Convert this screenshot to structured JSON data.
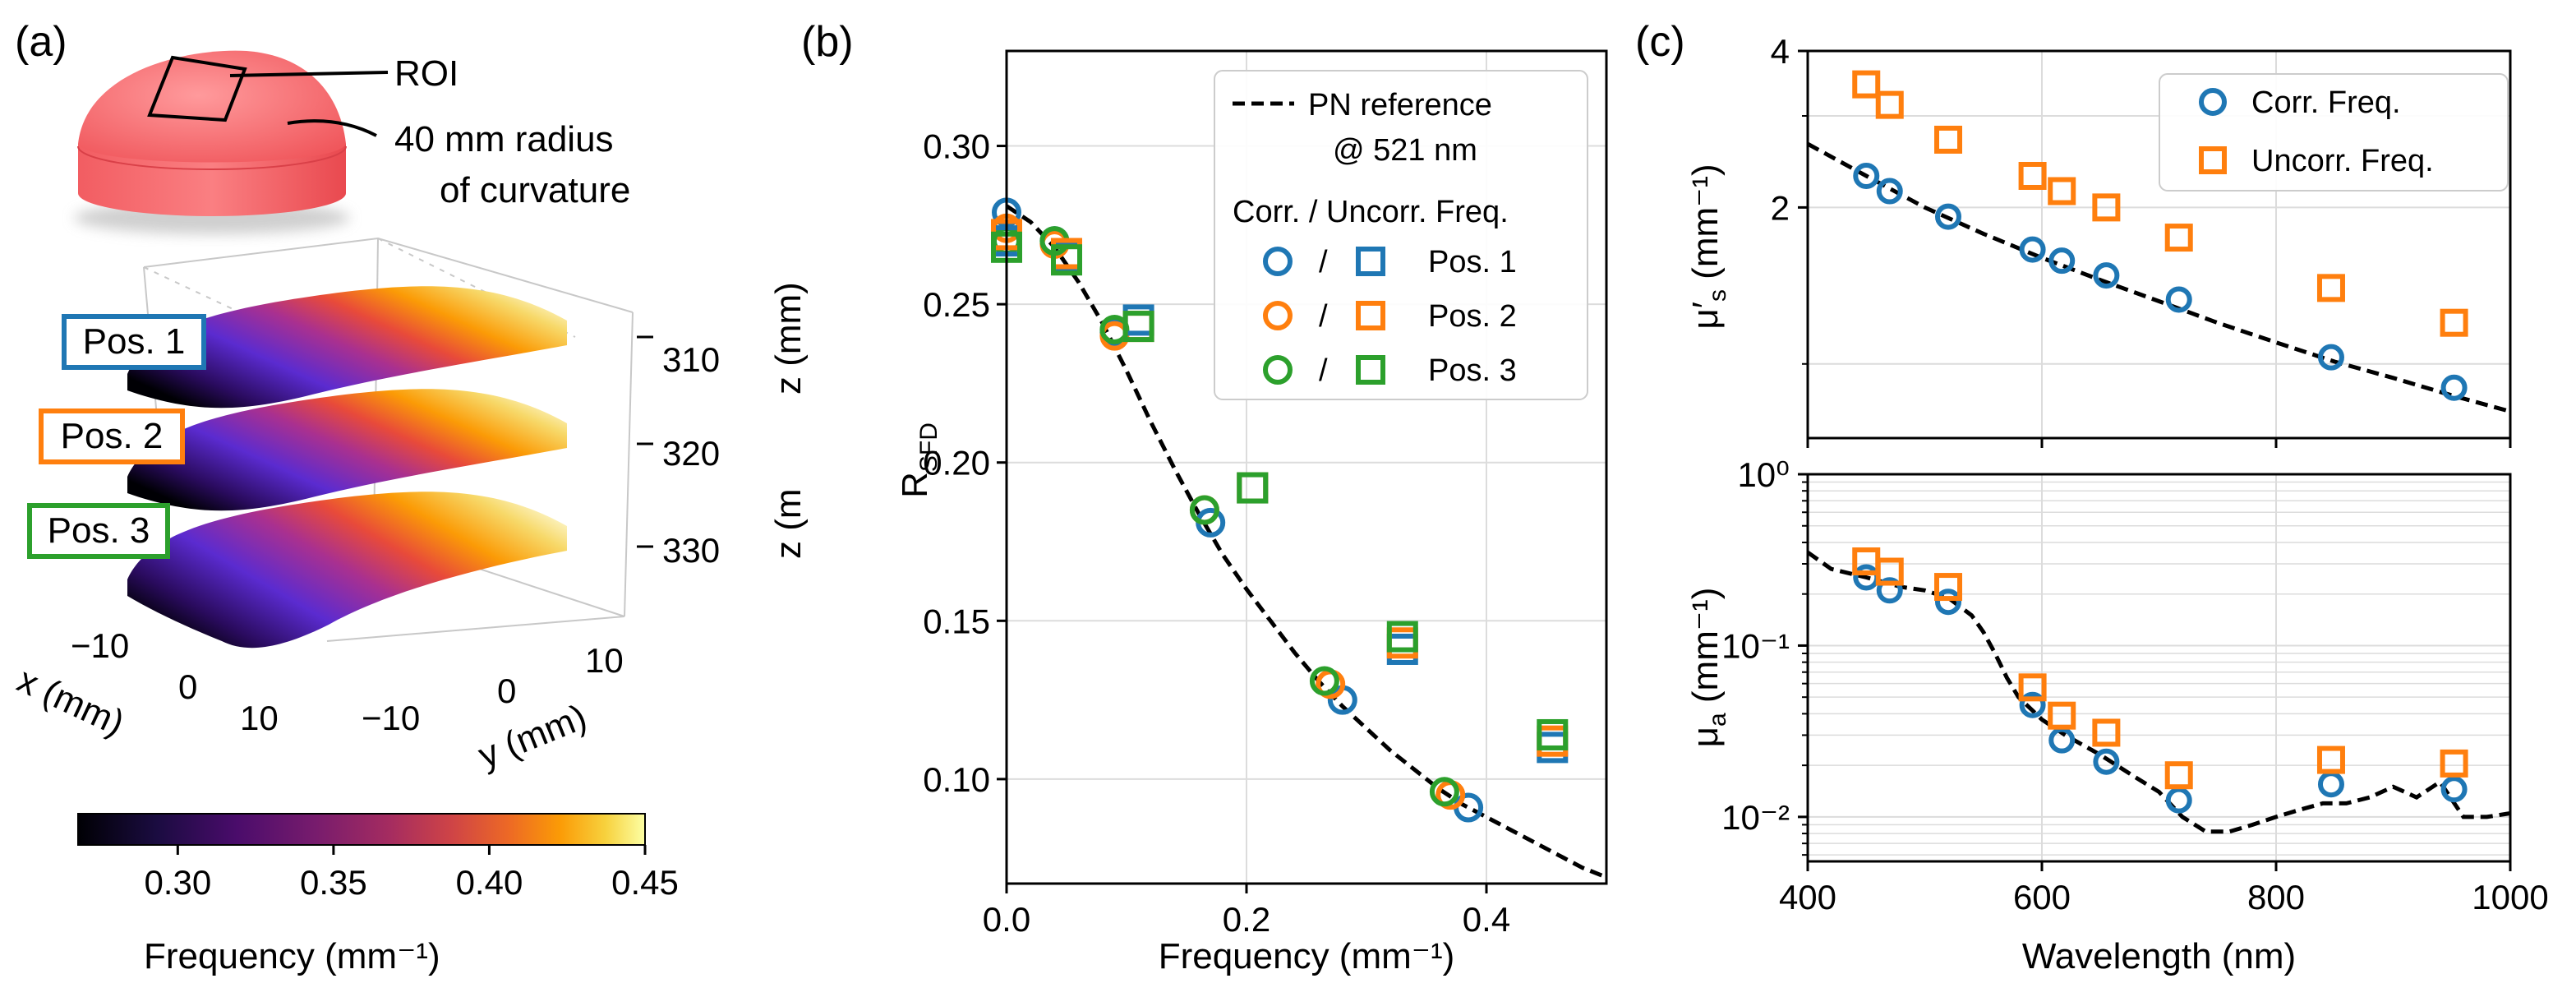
{
  "colors": {
    "pos1": "#1f77b4",
    "pos2": "#ff7f0e",
    "pos3": "#2ca02c",
    "corr": "#1f77b4",
    "uncorr": "#ff7f0e",
    "reference": "#000000",
    "phantom": "#f0575c",
    "grid": "#dcdcdc"
  },
  "panel_a": {
    "label": "(a)",
    "roi_label": "ROI",
    "curvature_label_line1": "40 mm radius",
    "curvature_label_line2": "of curvature",
    "positions": [
      "Pos. 1",
      "Pos. 2",
      "Pos. 3"
    ],
    "z_axis_label": "z (mm)",
    "z_axis_label_clipped": "z (m",
    "z_ticks": [
      "310",
      "320",
      "330"
    ],
    "x_axis_label": "x (mm)",
    "x_ticks": [
      "−10",
      "0",
      "10"
    ],
    "y_axis_label": "y (mm)",
    "y_ticks": [
      "−10",
      "0",
      "10"
    ],
    "colorbar": {
      "label": "Frequency (mm⁻¹)",
      "ticks": [
        "0.30",
        "0.35",
        "0.40",
        "0.45"
      ],
      "tick_values": [
        0.3,
        0.35,
        0.4,
        0.45
      ],
      "range": [
        0.268,
        0.45
      ],
      "colormap": "inferno"
    }
  },
  "panel_b": {
    "label": "(b)",
    "legend": {
      "reference_line1": "PN reference",
      "reference_line2": "@ 521 nm",
      "header": "Corr. / Uncorr. Freq.",
      "separator": "/",
      "entries": [
        "Pos. 1",
        "Pos. 2",
        "Pos. 3"
      ]
    }
  },
  "panel_c": {
    "label": "(c)",
    "legend": {
      "corr": "Corr. Freq.",
      "uncorr": "Uncorr. Freq."
    }
  },
  "chart_data": [
    {
      "id": "b",
      "type": "scatter",
      "xlabel": "Frequency (mm⁻¹)",
      "ylabel": "R_SFD",
      "xlim": [
        0.0,
        0.5
      ],
      "ylim": [
        0.067,
        0.33
      ],
      "xticks": [
        0.0,
        0.2,
        0.4
      ],
      "xtick_labels": [
        "0.0",
        "0.2",
        "0.4"
      ],
      "yticks": [
        0.1,
        0.15,
        0.2,
        0.25,
        0.3
      ],
      "ytick_labels": [
        "0.10",
        "0.15",
        "0.20",
        "0.25",
        "0.30"
      ],
      "grid": true,
      "reference": {
        "name": "PN reference @ 521 nm",
        "x": [
          0.0,
          0.02,
          0.04,
          0.06,
          0.08,
          0.1,
          0.12,
          0.14,
          0.16,
          0.18,
          0.2,
          0.22,
          0.24,
          0.26,
          0.28,
          0.3,
          0.32,
          0.34,
          0.36,
          0.38,
          0.4,
          0.42,
          0.44,
          0.46,
          0.48,
          0.5
        ],
        "y": [
          0.281,
          0.276,
          0.268,
          0.257,
          0.244,
          0.229,
          0.213,
          0.198,
          0.184,
          0.171,
          0.16,
          0.15,
          0.14,
          0.131,
          0.123,
          0.116,
          0.109,
          0.103,
          0.097,
          0.092,
          0.088,
          0.084,
          0.08,
          0.076,
          0.072,
          0.069
        ]
      },
      "series": [
        {
          "name": "Pos. 1",
          "marker": "circle",
          "corrected": true,
          "x": [
            0.0,
            0.04,
            0.09,
            0.17,
            0.28,
            0.385
          ],
          "y": [
            0.279,
            0.27,
            0.241,
            0.181,
            0.125,
            0.091
          ]
        },
        {
          "name": "Pos. 2",
          "marker": "circle",
          "corrected": true,
          "x": [
            0.0,
            0.04,
            0.09,
            0.165,
            0.27,
            0.37
          ],
          "y": [
            0.274,
            0.269,
            0.24,
            0.185,
            0.13,
            0.095
          ]
        },
        {
          "name": "Pos. 3",
          "marker": "circle",
          "corrected": true,
          "x": [
            0.0,
            0.04,
            0.09,
            0.165,
            0.265,
            0.365
          ],
          "y": [
            0.27,
            0.27,
            0.242,
            0.185,
            0.131,
            0.096
          ]
        },
        {
          "name": "Pos. 1",
          "marker": "square",
          "corrected": false,
          "x": [
            0.0,
            0.05,
            0.11,
            0.205,
            0.33,
            0.455
          ],
          "y": [
            0.27,
            0.265,
            0.245,
            0.192,
            0.141,
            0.11
          ]
        },
        {
          "name": "Pos. 2",
          "marker": "square",
          "corrected": false,
          "x": [
            0.0,
            0.05,
            0.11,
            0.205,
            0.33,
            0.455
          ],
          "y": [
            0.272,
            0.266,
            0.243,
            0.192,
            0.143,
            0.112
          ]
        },
        {
          "name": "Pos. 3",
          "marker": "square",
          "corrected": false,
          "x": [
            0.0,
            0.05,
            0.11,
            0.205,
            0.33,
            0.455
          ],
          "y": [
            0.268,
            0.264,
            0.243,
            0.192,
            0.145,
            0.114
          ]
        }
      ]
    },
    {
      "id": "c-top",
      "type": "scatter",
      "ylabel": "μ′s (mm⁻¹)",
      "xlim": [
        400,
        1000
      ],
      "ylim": [
        0.72,
        4.0
      ],
      "yscale": "log",
      "yticks": [
        2,
        4
      ],
      "ytick_labels": [
        "2",
        "4"
      ],
      "xticks": [
        400,
        600,
        800,
        1000
      ],
      "grid": true,
      "reference": {
        "x": [
          400,
          450,
          500,
          550,
          600,
          650,
          700,
          750,
          800,
          850,
          900,
          950,
          1000
        ],
        "y": [
          2.65,
          2.3,
          2.0,
          1.78,
          1.6,
          1.45,
          1.32,
          1.2,
          1.1,
          1.01,
          0.94,
          0.87,
          0.81
        ]
      },
      "series": [
        {
          "name": "Corr. Freq.",
          "marker": "circle",
          "x": [
            450,
            470,
            520,
            592,
            617,
            655,
            717,
            847,
            952
          ],
          "y": [
            2.3,
            2.15,
            1.92,
            1.66,
            1.58,
            1.48,
            1.33,
            1.03,
            0.9
          ]
        },
        {
          "name": "Uncorr. Freq.",
          "marker": "square",
          "x": [
            450,
            470,
            520,
            592,
            617,
            655,
            717,
            847,
            952
          ],
          "y": [
            3.45,
            3.15,
            2.7,
            2.3,
            2.15,
            2.0,
            1.75,
            1.4,
            1.2
          ]
        }
      ]
    },
    {
      "id": "c-bottom",
      "type": "scatter",
      "xlabel": "Wavelength (nm)",
      "ylabel": "μa (mm⁻¹)",
      "xlim": [
        400,
        1000
      ],
      "ylim": [
        0.0055,
        1.0
      ],
      "yscale": "log",
      "xticks": [
        400,
        600,
        800,
        1000
      ],
      "xtick_labels": [
        "400",
        "600",
        "800",
        "1000"
      ],
      "yticks": [
        0.01,
        0.1,
        1.0
      ],
      "ytick_labels": [
        "10⁻²",
        "10⁻¹",
        "10⁰"
      ],
      "grid": true,
      "reference": {
        "x": [
          400,
          420,
          450,
          480,
          500,
          520,
          540,
          550,
          560,
          570,
          580,
          590,
          600,
          620,
          650,
          680,
          700,
          720,
          740,
          760,
          780,
          800,
          820,
          840,
          860,
          880,
          900,
          920,
          940,
          960,
          980,
          1000
        ],
        "y": [
          0.35,
          0.28,
          0.25,
          0.22,
          0.21,
          0.19,
          0.15,
          0.12,
          0.09,
          0.065,
          0.05,
          0.043,
          0.037,
          0.03,
          0.023,
          0.017,
          0.014,
          0.01,
          0.0082,
          0.0082,
          0.009,
          0.01,
          0.011,
          0.012,
          0.012,
          0.013,
          0.015,
          0.013,
          0.016,
          0.01,
          0.01,
          0.0105
        ]
      },
      "series": [
        {
          "name": "Corr. Freq.",
          "marker": "circle",
          "x": [
            450,
            470,
            520,
            592,
            617,
            655,
            717,
            847,
            952
          ],
          "y": [
            0.25,
            0.21,
            0.18,
            0.045,
            0.028,
            0.021,
            0.0125,
            0.0155,
            0.0145
          ]
        },
        {
          "name": "Uncorr. Freq.",
          "marker": "square",
          "x": [
            450,
            470,
            520,
            592,
            617,
            655,
            717,
            847,
            952
          ],
          "y": [
            0.31,
            0.27,
            0.22,
            0.057,
            0.039,
            0.031,
            0.0175,
            0.0215,
            0.0205
          ]
        }
      ]
    }
  ]
}
